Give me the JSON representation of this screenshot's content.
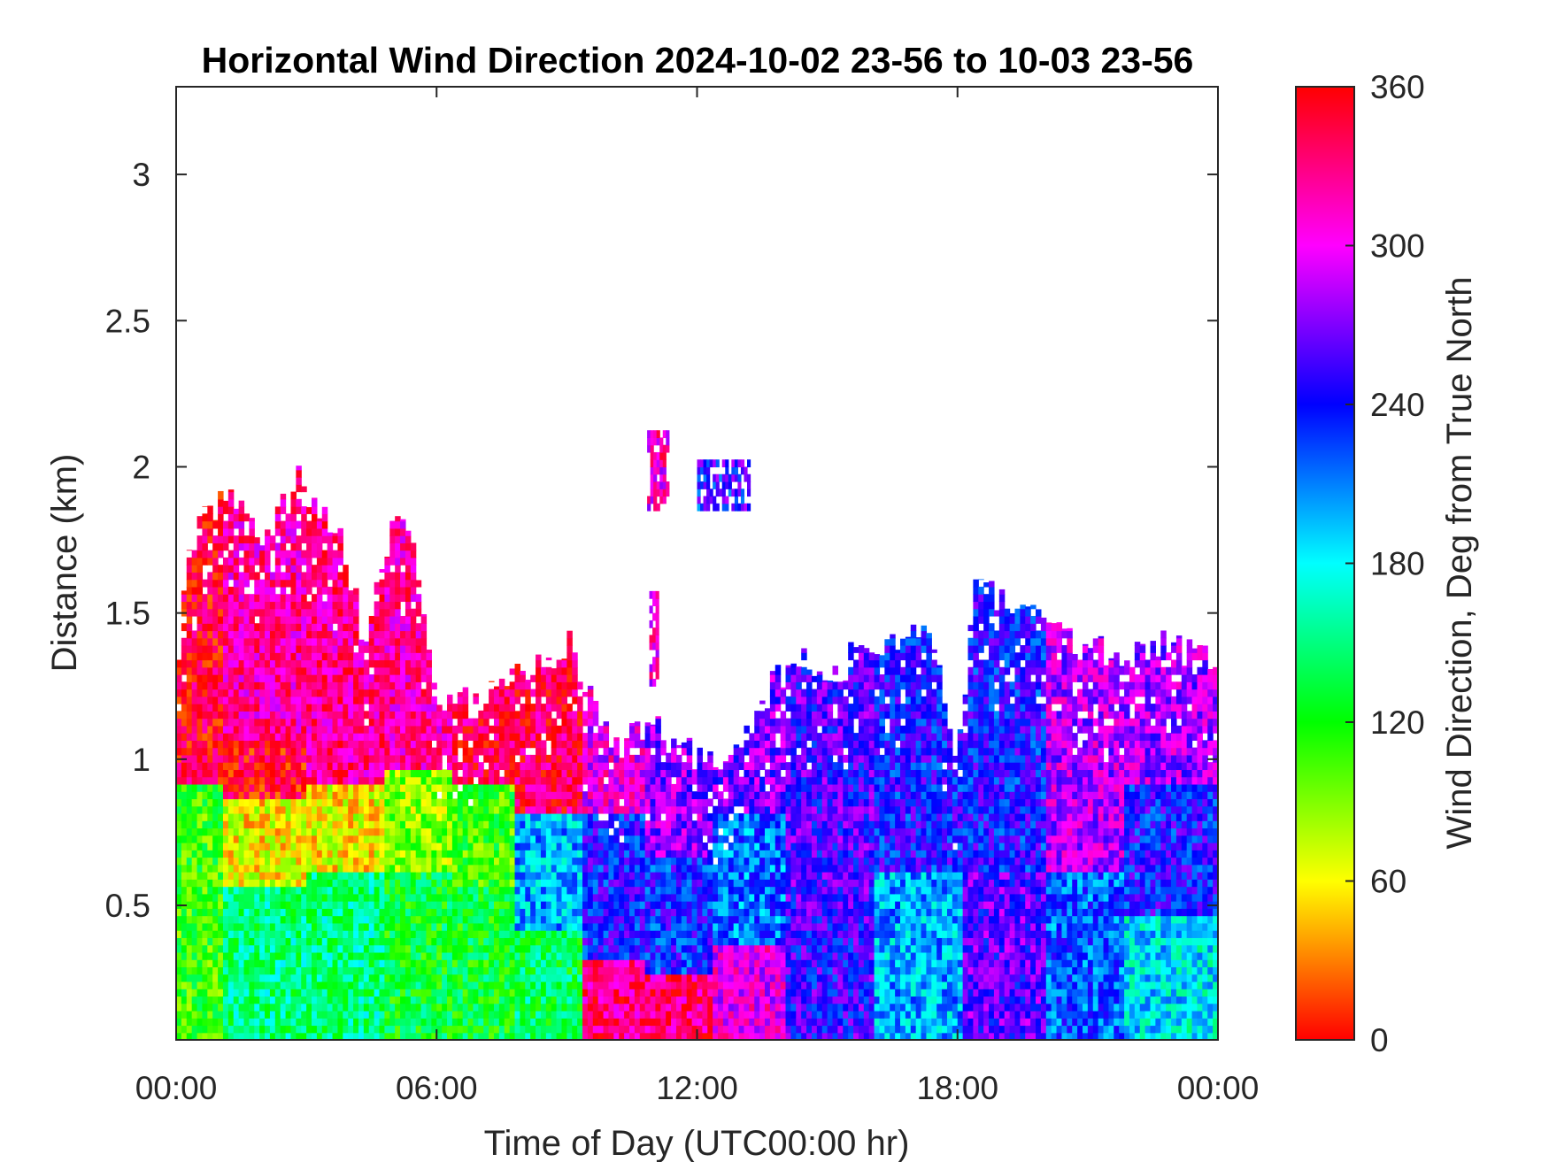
{
  "chart_data": {
    "type": "heatmap",
    "title": "Horizontal Wind Direction 2024-10-02 23-56 to 10-03 23-56",
    "xlabel": "Time of Day (UTC00:00 hr)",
    "ylabel": "Distance (km)",
    "x_ticks": [
      {
        "value": 0,
        "label": "00:00"
      },
      {
        "value": 6,
        "label": "06:00"
      },
      {
        "value": 12,
        "label": "12:00"
      },
      {
        "value": 18,
        "label": "18:00"
      },
      {
        "value": 24,
        "label": "00:00"
      }
    ],
    "y_ticks": [
      {
        "value": 0.5,
        "label": "0.5"
      },
      {
        "value": 1,
        "label": "1"
      },
      {
        "value": 1.5,
        "label": "1.5"
      },
      {
        "value": 2,
        "label": "2"
      },
      {
        "value": 2.5,
        "label": "2.5"
      },
      {
        "value": 3,
        "label": "3"
      }
    ],
    "xlim": [
      0,
      24
    ],
    "ylim": [
      0.04,
      3.3
    ],
    "grid": false,
    "colorbar": {
      "label": "Wind Direction, Deg from True North",
      "range": [
        0,
        360
      ],
      "ticks": [
        {
          "value": 0,
          "label": "0"
        },
        {
          "value": 60,
          "label": "60"
        },
        {
          "value": 120,
          "label": "120"
        },
        {
          "value": 180,
          "label": "180"
        },
        {
          "value": 240,
          "label": "240"
        },
        {
          "value": 300,
          "label": "300"
        },
        {
          "value": 360,
          "label": "360"
        }
      ],
      "colors": [
        "#ff0000",
        "#ffff00",
        "#00ff00",
        "#00ffff",
        "#0000ff",
        "#ff00ff",
        "#ff0000"
      ]
    },
    "data_coverage": {
      "note_cols": "time in hours, top of returned data in km",
      "top_km": [
        [
          0.0,
          1.3
        ],
        [
          0.3,
          1.7
        ],
        [
          0.8,
          1.85
        ],
        [
          1.5,
          1.9
        ],
        [
          2.0,
          1.75
        ],
        [
          2.8,
          1.95
        ],
        [
          3.3,
          1.85
        ],
        [
          3.8,
          1.8
        ],
        [
          4.3,
          1.4
        ],
        [
          5.0,
          1.8
        ],
        [
          5.5,
          1.75
        ],
        [
          5.9,
          1.25
        ],
        [
          6.2,
          1.2
        ],
        [
          7.0,
          1.2
        ],
        [
          8.0,
          1.3
        ],
        [
          9.0,
          1.4
        ],
        [
          9.6,
          1.2
        ],
        [
          10.2,
          1.05
        ],
        [
          11.0,
          1.1
        ],
        [
          12.0,
          1.0
        ],
        [
          12.8,
          1.0
        ],
        [
          13.5,
          1.2
        ],
        [
          14.3,
          1.35
        ],
        [
          15.0,
          1.25
        ],
        [
          15.8,
          1.4
        ],
        [
          16.6,
          1.4
        ],
        [
          17.3,
          1.45
        ],
        [
          18.0,
          1.0
        ],
        [
          18.4,
          1.6
        ],
        [
          19.0,
          1.55
        ],
        [
          19.8,
          1.5
        ],
        [
          20.6,
          1.4
        ],
        [
          21.5,
          1.35
        ],
        [
          22.5,
          1.4
        ],
        [
          23.5,
          1.35
        ],
        [
          24.0,
          1.32
        ]
      ],
      "patches": [
        {
          "t_start": 10.85,
          "t_end": 11.3,
          "z_bottom": 1.85,
          "z_top": 2.12
        },
        {
          "t_start": 12.0,
          "t_end": 13.2,
          "z_bottom": 1.85,
          "z_top": 2.0
        },
        {
          "t_start": 10.9,
          "t_end": 11.1,
          "z_bottom": 1.25,
          "z_top": 1.55
        }
      ]
    },
    "direction_layers": [
      {
        "t": 0.0,
        "layers": [
          [
            0.04,
            0.9,
            110
          ],
          [
            0.9,
            1.3,
            350
          ]
        ]
      },
      {
        "t": 2.0,
        "layers": [
          [
            0.04,
            0.55,
            150
          ],
          [
            0.55,
            0.85,
            60
          ],
          [
            0.85,
            1.05,
            355
          ],
          [
            1.05,
            1.9,
            320
          ]
        ]
      },
      {
        "t": 4.0,
        "layers": [
          [
            0.04,
            0.6,
            150
          ],
          [
            0.6,
            0.9,
            60
          ],
          [
            0.9,
            1.8,
            325
          ]
        ]
      },
      {
        "t": 5.5,
        "layers": [
          [
            0.04,
            0.6,
            130
          ],
          [
            0.6,
            0.95,
            90
          ],
          [
            0.95,
            1.75,
            320
          ]
        ]
      },
      {
        "t": 7.0,
        "layers": [
          [
            0.04,
            0.55,
            130
          ],
          [
            0.55,
            0.9,
            110
          ],
          [
            0.9,
            1.2,
            340
          ]
        ]
      },
      {
        "t": 8.5,
        "layers": [
          [
            0.04,
            0.4,
            140
          ],
          [
            0.4,
            0.8,
            200
          ],
          [
            0.8,
            1.3,
            340
          ]
        ]
      },
      {
        "t": 10.0,
        "layers": [
          [
            0.04,
            0.3,
            330
          ],
          [
            0.3,
            0.8,
            240
          ],
          [
            0.8,
            1.05,
            300
          ]
        ]
      },
      {
        "t": 11.5,
        "layers": [
          [
            0.04,
            0.25,
            330
          ],
          [
            0.25,
            0.65,
            235
          ],
          [
            0.65,
            1.1,
            275
          ]
        ]
      },
      {
        "t": 13.0,
        "layers": [
          [
            0.04,
            0.35,
            300
          ],
          [
            0.35,
            0.8,
            215
          ],
          [
            0.8,
            1.2,
            270
          ]
        ]
      },
      {
        "t": 15.0,
        "layers": [
          [
            0.04,
            0.5,
            250
          ],
          [
            0.5,
            1.3,
            255
          ]
        ]
      },
      {
        "t": 17.0,
        "layers": [
          [
            0.04,
            0.6,
            200
          ],
          [
            0.6,
            1.45,
            240
          ]
        ]
      },
      {
        "t": 19.0,
        "layers": [
          [
            0.04,
            0.6,
            260
          ],
          [
            0.6,
            1.55,
            240
          ]
        ]
      },
      {
        "t": 21.0,
        "layers": [
          [
            0.04,
            0.6,
            220
          ],
          [
            0.6,
            1.4,
            285
          ]
        ]
      },
      {
        "t": 22.5,
        "layers": [
          [
            0.04,
            0.45,
            185
          ],
          [
            0.45,
            0.9,
            240
          ],
          [
            0.9,
            1.4,
            280
          ]
        ]
      },
      {
        "t": 24.0,
        "layers": [
          [
            0.04,
            0.45,
            180
          ],
          [
            0.45,
            0.9,
            240
          ],
          [
            0.9,
            1.32,
            280
          ]
        ]
      }
    ]
  }
}
